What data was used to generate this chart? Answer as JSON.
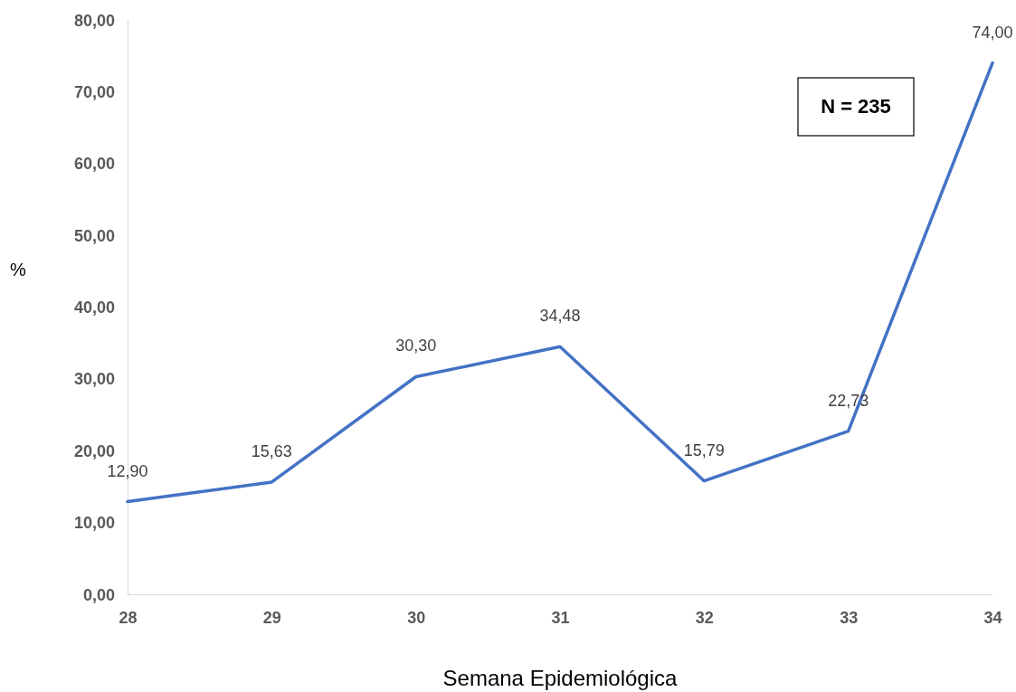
{
  "chart_data": {
    "type": "line",
    "xlabel": "Semana Epidemiológica",
    "ylabel": "%",
    "categories": [
      "28",
      "29",
      "30",
      "31",
      "32",
      "33",
      "34"
    ],
    "series": [
      {
        "color": "#4472c4",
        "values": [
          12.9,
          15.63,
          30.3,
          34.48,
          15.79,
          22.73,
          74.0
        ],
        "value_labels": [
          "12,90",
          "15,63",
          "30,30",
          "34,48",
          "15,79",
          "22,73",
          "74,00"
        ]
      }
    ],
    "ylim": [
      0,
      80
    ],
    "yticks": [
      {
        "value": 0,
        "label": "0,00"
      },
      {
        "value": 10,
        "label": "10,00"
      },
      {
        "value": 20,
        "label": "20,00"
      },
      {
        "value": 30,
        "label": "30,00"
      },
      {
        "value": 40,
        "label": "40,00"
      },
      {
        "value": 50,
        "label": "50,00"
      },
      {
        "value": 60,
        "label": "60,00"
      },
      {
        "value": 70,
        "label": "70,00"
      },
      {
        "value": 80,
        "label": "80,00"
      }
    ],
    "grid": false,
    "marker": "none",
    "line_style": "solid",
    "annotations": [
      "N = 235"
    ]
  }
}
